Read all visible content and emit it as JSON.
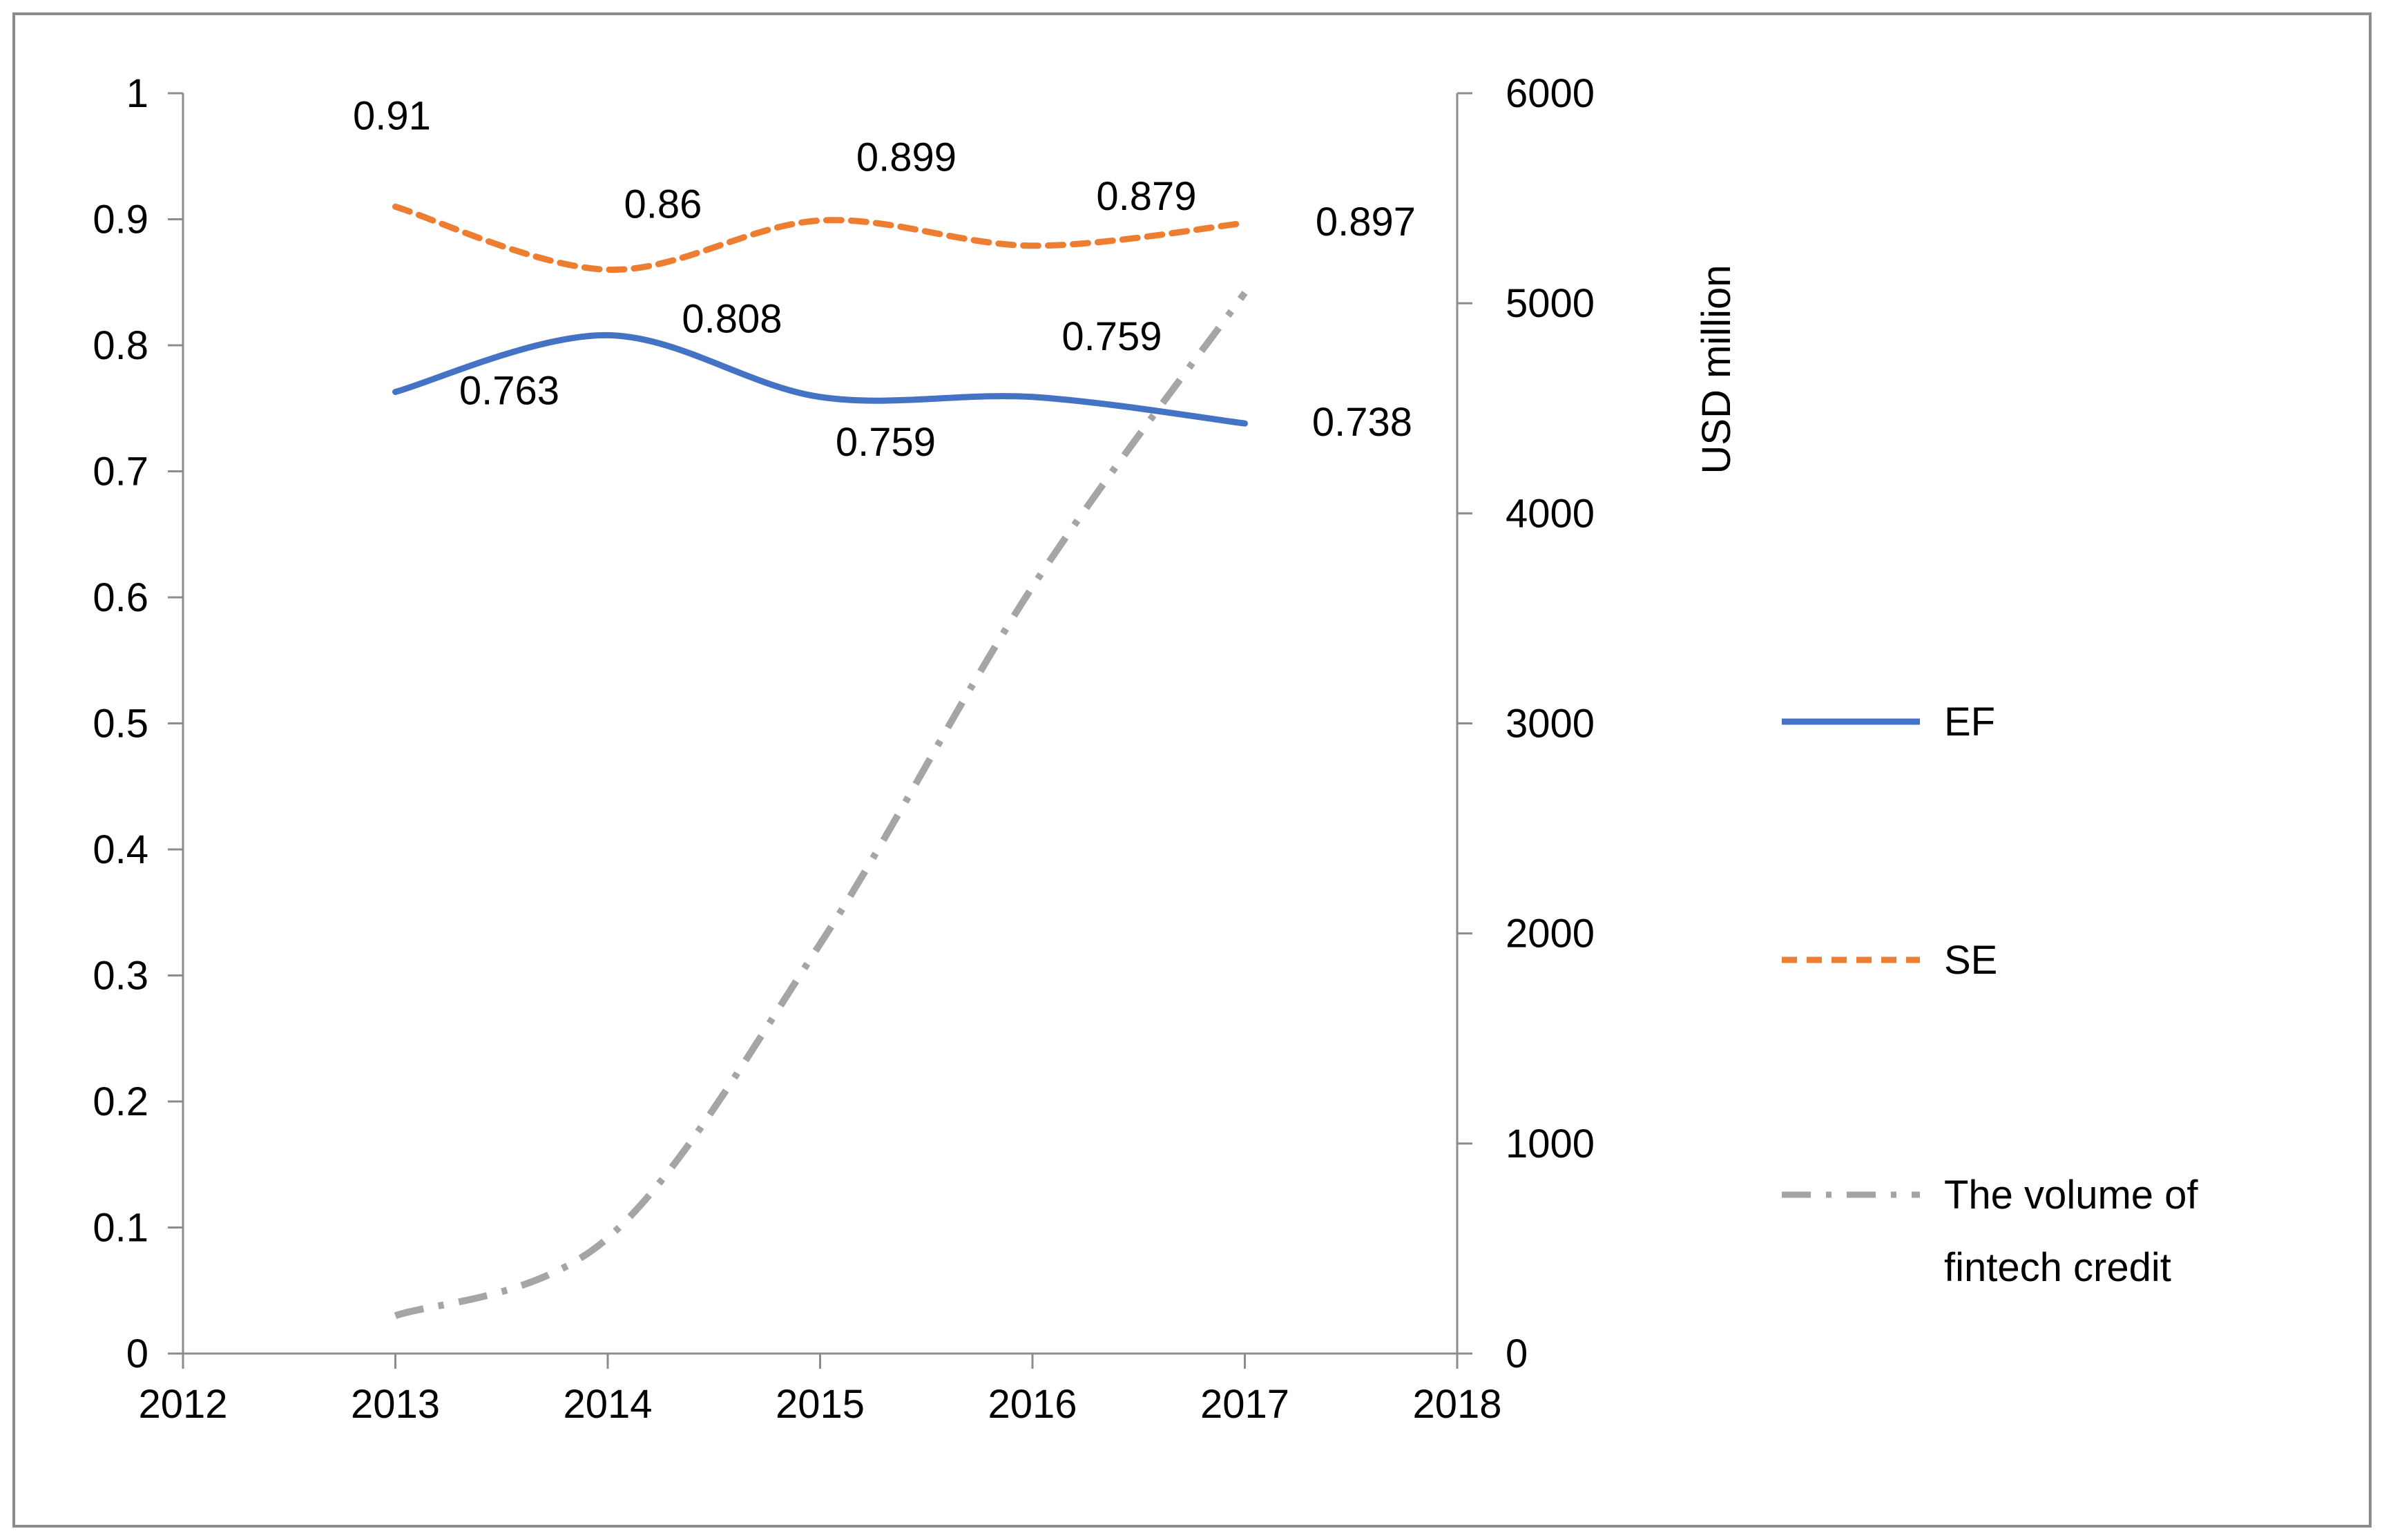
{
  "chart_data": {
    "type": "line",
    "title": "",
    "xlabel": "",
    "ylabel": "",
    "y2label": "USD million",
    "x": [
      2013,
      2014,
      2015,
      2016,
      2017
    ],
    "x_ticks": [
      "2012",
      "2013",
      "2014",
      "2015",
      "2016",
      "2017",
      "2018"
    ],
    "xlim": [
      2012,
      2018
    ],
    "y_ticks": [
      "0",
      "0.1",
      "0.2",
      "0.3",
      "0.4",
      "0.5",
      "0.6",
      "0.7",
      "0.8",
      "0.9",
      "1"
    ],
    "ylim": [
      0,
      1
    ],
    "y2_ticks": [
      "0",
      "1000",
      "2000",
      "3000",
      "4000",
      "5000",
      "6000"
    ],
    "y2lim": [
      0,
      6000
    ],
    "grid": false,
    "legend_position": "right",
    "series": [
      {
        "name": "EF",
        "axis": "left",
        "style": "solid",
        "color": "#4472C4",
        "values": [
          0.763,
          0.808,
          0.759,
          0.759,
          0.738
        ],
        "labels": [
          "0.763",
          "0.808",
          "0.759",
          "0.759",
          "0.738"
        ]
      },
      {
        "name": "SE",
        "axis": "left",
        "style": "dashed",
        "color": "#ED7D31",
        "values": [
          0.91,
          0.86,
          0.899,
          0.879,
          0.897
        ],
        "labels": [
          "0.91",
          "0.86",
          "0.899",
          "0.879",
          "0.897"
        ]
      },
      {
        "name": "The volume of fintech credit",
        "axis": "right",
        "style": "dash-dot",
        "color": "#A5A5A5",
        "values": [
          180,
          550,
          1950,
          3650,
          5050
        ],
        "labels": []
      }
    ],
    "legend": {
      "entries": [
        "EF",
        "SE",
        "The volume of fintech credit"
      ],
      "entry_lines": [
        [
          "EF"
        ],
        [
          "SE"
        ],
        [
          "The volume of",
          "fintech credit"
        ]
      ]
    }
  }
}
